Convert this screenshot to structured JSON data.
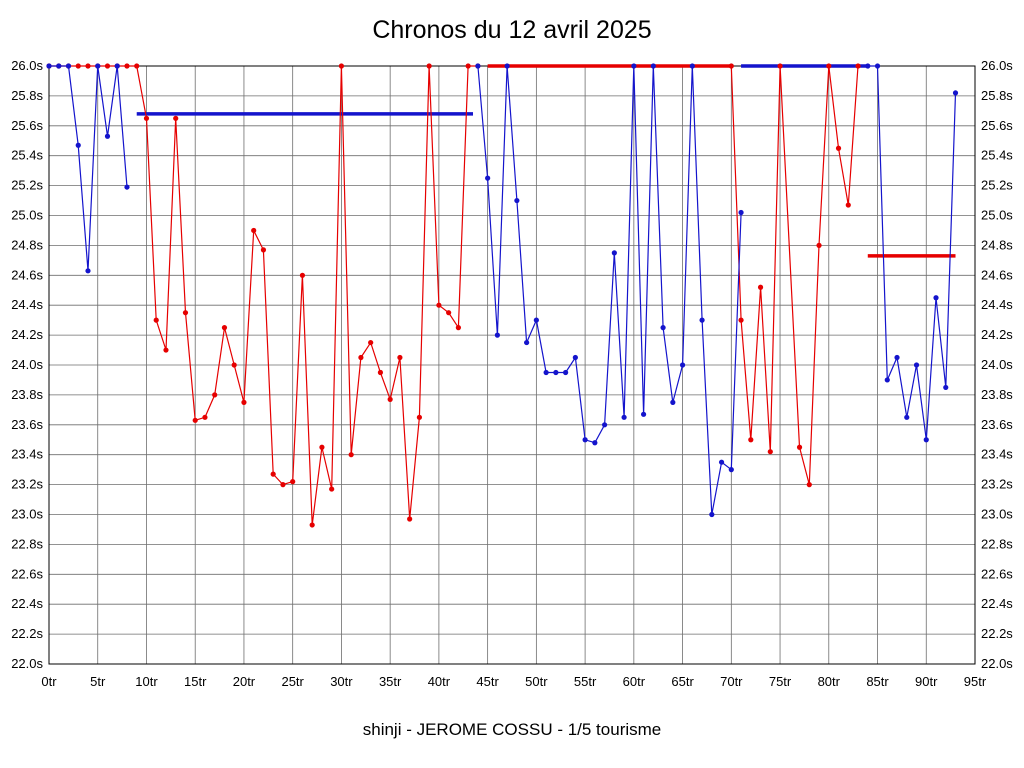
{
  "title": "Chronos du 12 avril 2025",
  "caption": "shinji - JEROME COSSU - 1/5 tourisme",
  "chart_data": {
    "type": "line",
    "x_unit": "tr",
    "y_unit": "s",
    "xlim": [
      0,
      95
    ],
    "ylim": [
      22.0,
      26.0
    ],
    "x_tick_step": 5,
    "y_tick_step": 0.2,
    "grid": true,
    "x_tick_labels": [
      "0tr",
      "5tr",
      "10tr",
      "15tr",
      "20tr",
      "25tr",
      "30tr",
      "35tr",
      "40tr",
      "45tr",
      "50tr",
      "55tr",
      "60tr",
      "65tr",
      "70tr",
      "75tr",
      "80tr",
      "85tr",
      "90tr",
      "95tr"
    ],
    "y_tick_labels": [
      "22.0s",
      "22.2s",
      "22.4s",
      "22.6s",
      "22.8s",
      "23.0s",
      "23.2s",
      "23.4s",
      "23.6s",
      "23.8s",
      "24.0s",
      "24.2s",
      "24.4s",
      "24.6s",
      "24.8s",
      "25.0s",
      "25.2s",
      "25.4s",
      "25.6s",
      "25.8s",
      "26.0s"
    ],
    "series": [
      {
        "name": "driver-red",
        "color": "#e60000",
        "runs": [
          [
            [
              0,
              26
            ],
            [
              1,
              26
            ],
            [
              2,
              26
            ],
            [
              3,
              26
            ],
            [
              4,
              26
            ],
            [
              5,
              26
            ],
            [
              6,
              26
            ],
            [
              7,
              26
            ],
            [
              8,
              26
            ],
            [
              9,
              26
            ],
            [
              10,
              25.65
            ],
            [
              11,
              24.3
            ],
            [
              12,
              24.1
            ],
            [
              13,
              25.65
            ],
            [
              14,
              24.35
            ],
            [
              15,
              23.63
            ],
            [
              16,
              23.65
            ],
            [
              17,
              23.8
            ],
            [
              18,
              24.25
            ],
            [
              19,
              24.0
            ],
            [
              20,
              23.75
            ],
            [
              21,
              24.9
            ],
            [
              22,
              24.77
            ],
            [
              23,
              23.27
            ],
            [
              24,
              23.2
            ],
            [
              25,
              23.22
            ],
            [
              26,
              24.6
            ],
            [
              27,
              22.93
            ],
            [
              28,
              23.45
            ],
            [
              29,
              23.17
            ],
            [
              30,
              26
            ],
            [
              31,
              23.4
            ],
            [
              32,
              24.05
            ],
            [
              33,
              24.15
            ],
            [
              34,
              23.95
            ],
            [
              35,
              23.77
            ],
            [
              36,
              24.05
            ],
            [
              37,
              22.97
            ],
            [
              38,
              23.65
            ],
            [
              39,
              26
            ],
            [
              40,
              24.4
            ],
            [
              41,
              24.35
            ],
            [
              42,
              24.25
            ],
            [
              43,
              26
            ],
            [
              44,
              26
            ]
          ],
          [
            [
              70,
              26
            ],
            [
              71,
              24.3
            ],
            [
              72,
              23.5
            ],
            [
              73,
              24.52
            ],
            [
              74,
              23.42
            ],
            [
              75,
              26
            ],
            [
              77,
              23.45
            ],
            [
              78,
              23.2
            ],
            [
              79,
              24.8
            ],
            [
              80,
              26
            ],
            [
              81,
              25.45
            ],
            [
              82,
              25.07
            ],
            [
              83,
              26
            ]
          ]
        ]
      },
      {
        "name": "driver-blue",
        "color": "#1414cc",
        "runs": [
          [
            [
              0,
              26
            ],
            [
              1,
              26
            ],
            [
              2,
              26
            ],
            [
              3,
              25.47
            ],
            [
              4,
              24.63
            ],
            [
              5,
              26
            ],
            [
              6,
              25.53
            ],
            [
              7,
              26
            ],
            [
              8,
              25.19
            ]
          ],
          [
            [
              44,
              26
            ],
            [
              45,
              25.25
            ],
            [
              46,
              24.2
            ],
            [
              47,
              26
            ],
            [
              48,
              25.1
            ],
            [
              49,
              24.15
            ],
            [
              50,
              24.3
            ],
            [
              51,
              23.95
            ],
            [
              52,
              23.95
            ],
            [
              53,
              23.95
            ],
            [
              54,
              24.05
            ],
            [
              55,
              23.5
            ],
            [
              56,
              23.48
            ],
            [
              57,
              23.6
            ],
            [
              58,
              24.75
            ],
            [
              59,
              23.65
            ],
            [
              60,
              26
            ],
            [
              61,
              23.67
            ],
            [
              62,
              26
            ],
            [
              63,
              24.25
            ],
            [
              64,
              23.75
            ],
            [
              65,
              24.0
            ],
            [
              66,
              26
            ],
            [
              67,
              24.3
            ],
            [
              68,
              23.0
            ],
            [
              69,
              23.35
            ],
            [
              70,
              23.3
            ],
            [
              71,
              25.02
            ]
          ],
          [
            [
              84,
              26
            ],
            [
              85,
              26
            ],
            [
              86,
              23.9
            ],
            [
              87,
              24.05
            ],
            [
              88,
              23.65
            ],
            [
              89,
              24.0
            ],
            [
              90,
              23.5
            ],
            [
              91,
              24.45
            ],
            [
              92,
              23.85
            ],
            [
              93,
              25.82
            ]
          ]
        ]
      }
    ],
    "segments": [
      {
        "name": "blue-average-line",
        "color": "#1414cc",
        "y": 25.68,
        "x1": 9,
        "x2": 43.5
      },
      {
        "name": "red-top-line",
        "color": "#e60000",
        "y": 26.0,
        "x1": 45,
        "x2": 70
      },
      {
        "name": "blue-top-line",
        "color": "#1414cc",
        "y": 26.0,
        "x1": 71,
        "x2": 84
      },
      {
        "name": "red-average-line",
        "color": "#e60000",
        "y": 24.73,
        "x1": 84,
        "x2": 93
      }
    ]
  }
}
